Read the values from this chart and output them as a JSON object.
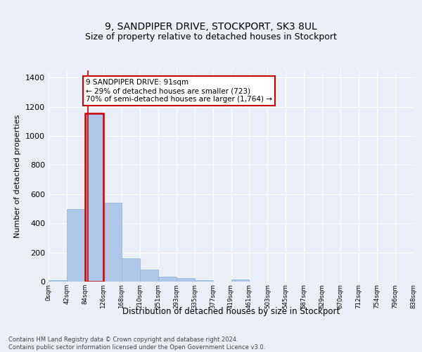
{
  "title1": "9, SANDPIPER DRIVE, STOCKPORT, SK3 8UL",
  "title2": "Size of property relative to detached houses in Stockport",
  "xlabel": "Distribution of detached houses by size in Stockport",
  "ylabel": "Number of detached properties",
  "bin_labels": [
    "0sqm",
    "42sqm",
    "84sqm",
    "126sqm",
    "168sqm",
    "210sqm",
    "251sqm",
    "293sqm",
    "335sqm",
    "377sqm",
    "419sqm",
    "461sqm",
    "503sqm",
    "545sqm",
    "587sqm",
    "629sqm",
    "670sqm",
    "712sqm",
    "754sqm",
    "796sqm",
    "838sqm"
  ],
  "bar_heights": [
    10,
    500,
    1155,
    540,
    160,
    80,
    35,
    25,
    12,
    0,
    15,
    0,
    0,
    0,
    0,
    0,
    0,
    0,
    0,
    0
  ],
  "bar_color": "#aec6e8",
  "bar_edge_color": "#8ab4d8",
  "highlight_bar_index": 2,
  "property_sqm": 91,
  "annotation_text": "9 SANDPIPER DRIVE: 91sqm\n← 29% of detached houses are smaller (723)\n70% of semi-detached houses are larger (1,764) →",
  "annotation_box_color": "#ffffff",
  "annotation_edge_color": "#cc0000",
  "ylim": [
    0,
    1450
  ],
  "yticks": [
    0,
    200,
    400,
    600,
    800,
    1000,
    1200,
    1400
  ],
  "footer_text": "Contains HM Land Registry data © Crown copyright and database right 2024.\nContains public sector information licensed under the Open Government Licence v3.0.",
  "bg_color": "#eaeff8",
  "plot_bg_color": "#eaeff8",
  "grid_color": "#ffffff",
  "bin_width": 42
}
